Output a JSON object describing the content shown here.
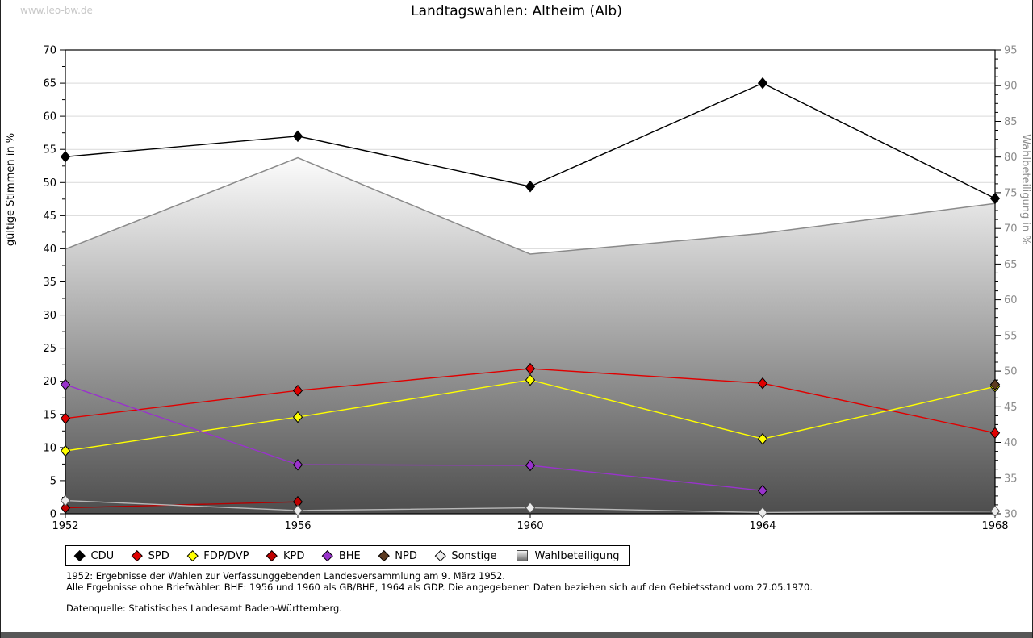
{
  "page": {
    "watermark": "www.leo-bw.de",
    "title": "Landtagswahlen: Altheim (Alb)",
    "footnotes": [
      "1952: Ergebnisse der Wahlen zur Verfassunggebenden Landesversammlung am 9. März 1952.",
      "Alle Ergebnisse ohne Briefwähler. BHE: 1956 und 1960 als GB/BHE, 1964 als GDP. Die angegebenen Daten beziehen sich auf den Gebietsstand vom 27.05.1970.",
      "Datenquelle: Statistisches Landesamt Baden-Württemberg."
    ]
  },
  "chart_data": {
    "type": "line",
    "x": [
      1952,
      1956,
      1960,
      1964,
      1968
    ],
    "left_axis": {
      "label": "gültige Stimmen in %",
      "min": 0,
      "max": 70,
      "tick_step": 5,
      "minor_step": 2.5,
      "text_color": "#000000"
    },
    "right_axis": {
      "label": "Wahlbeteiligung in %",
      "min": 30,
      "max": 95,
      "tick_step": 5,
      "minor_step": 1.25,
      "text_color": "#8c8c8c"
    },
    "grid": {
      "on": true,
      "color": "#d9d9d9"
    },
    "area_series": {
      "name": "Wahlbeteiligung",
      "axis": "right",
      "values": [
        67.1,
        79.9,
        66.4,
        69.3,
        73.5
      ],
      "stroke": "#8a8a8a",
      "gradient_top": "#fcfcfc",
      "gradient_bottom": "#4d4d4d"
    },
    "series": [
      {
        "name": "CDU",
        "color": "#000000",
        "marker_fill": "#000000",
        "values": [
          53.9,
          57.0,
          49.4,
          65.0,
          47.6
        ]
      },
      {
        "name": "SPD",
        "color": "#e00000",
        "marker_fill": "#e00000",
        "values": [
          14.4,
          18.6,
          21.9,
          19.7,
          12.2
        ]
      },
      {
        "name": "FDP/DVP",
        "color": "#ffff00",
        "marker_fill": "#ffff00",
        "values": [
          9.5,
          14.6,
          20.2,
          11.3,
          19.2
        ]
      },
      {
        "name": "KPD",
        "color": "#b50000",
        "marker_fill": "#c00000",
        "values": [
          0.9,
          1.8,
          null,
          null,
          null
        ]
      },
      {
        "name": "BHE",
        "color": "#9933cc",
        "marker_fill": "#9933cc",
        "values": [
          19.5,
          7.4,
          7.3,
          3.5,
          null
        ]
      },
      {
        "name": "NPD",
        "color": "#5c3a21",
        "marker_fill": "#5c3a21",
        "values": [
          null,
          null,
          null,
          null,
          19.5
        ]
      },
      {
        "name": "Sonstige",
        "color": "#b8b8b8",
        "marker_fill": "#ececec",
        "values": [
          2.0,
          0.5,
          0.9,
          0.2,
          0.4
        ]
      }
    ],
    "legend": [
      {
        "label": "CDU",
        "marker": "diamond",
        "color": "#000000"
      },
      {
        "label": "SPD",
        "marker": "diamond",
        "color": "#e00000"
      },
      {
        "label": "FDP/DVP",
        "marker": "diamond",
        "color": "#ffff00"
      },
      {
        "label": "KPD",
        "marker": "diamond",
        "color": "#c00000"
      },
      {
        "label": "BHE",
        "marker": "diamond",
        "color": "#9933cc"
      },
      {
        "label": "NPD",
        "marker": "diamond",
        "color": "#5c3a21"
      },
      {
        "label": "Sonstige",
        "marker": "diamond",
        "color": "#ececec"
      },
      {
        "label": "Wahlbeteiligung",
        "marker": "gradient-square",
        "color": "#aaaaaa"
      }
    ]
  }
}
